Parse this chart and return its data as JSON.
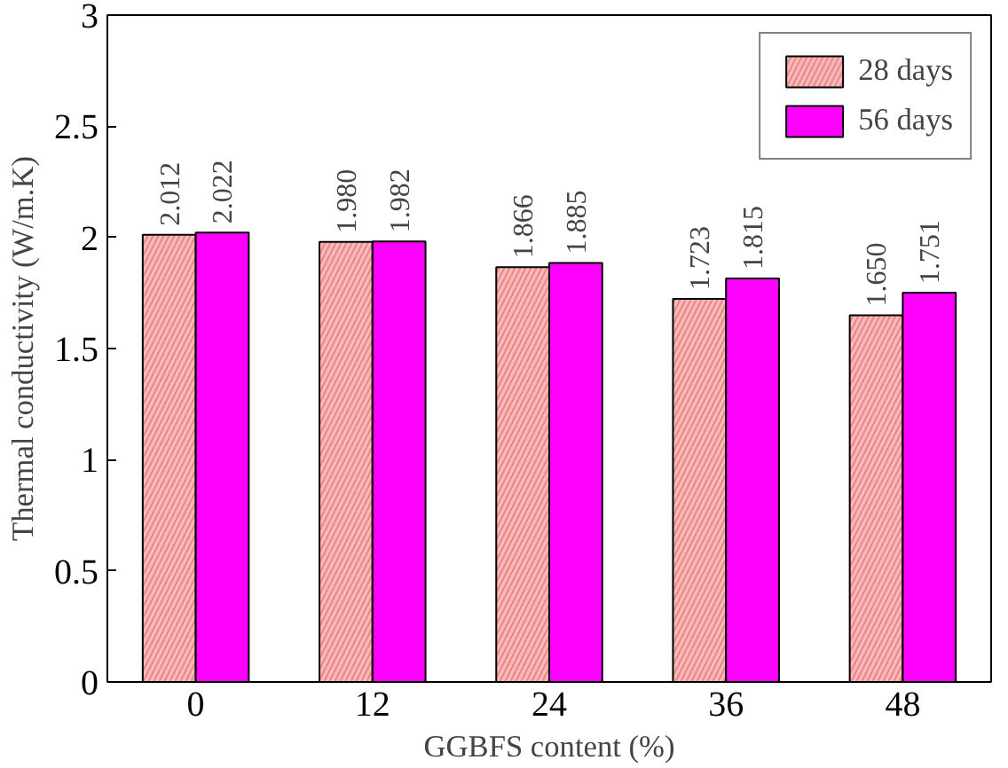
{
  "chart_data": {
    "type": "bar",
    "xlabel": "GGBFS content (%)",
    "ylabel": "Thermal conductivity (W/m.K)",
    "categories": [
      "0",
      "12",
      "24",
      "36",
      "48"
    ],
    "series": [
      {
        "name": "28 days",
        "color": "#f7b9b9",
        "values": [
          2.012,
          1.98,
          1.866,
          1.723,
          1.65
        ]
      },
      {
        "name": "56 days",
        "color": "#ff00ff",
        "values": [
          2.022,
          1.982,
          1.885,
          1.815,
          1.751
        ]
      }
    ],
    "value_labels": [
      [
        "2.012",
        "1.980",
        "1.866",
        "1.723",
        "1.650"
      ],
      [
        "2.022",
        "1.982",
        "1.885",
        "1.815",
        "1.751"
      ]
    ],
    "ylim": [
      0,
      3
    ],
    "yticks": [
      0,
      {
        "value": 0.5,
        "label": "0.5"
      },
      1,
      {
        "value": 1.5,
        "label": "1.5"
      },
      2,
      {
        "value": 2.5,
        "label": "2.5"
      },
      3
    ],
    "grid": false,
    "legend": "top right"
  }
}
